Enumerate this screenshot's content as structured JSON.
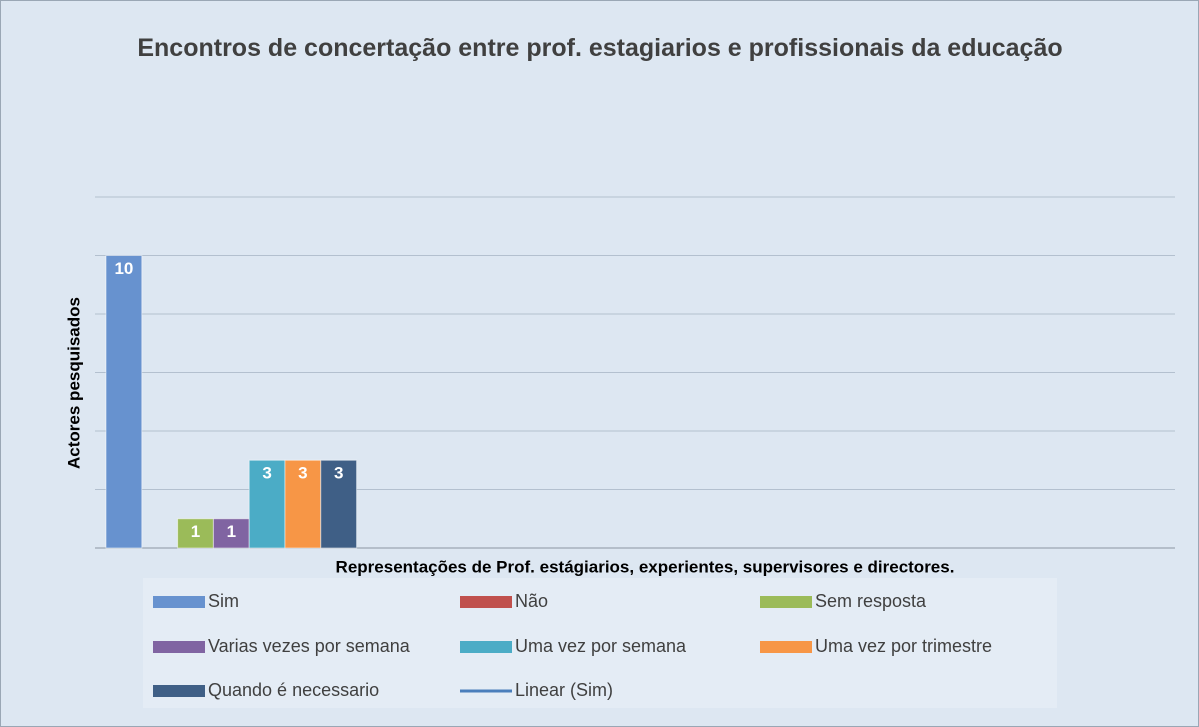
{
  "chart_data": {
    "type": "bar",
    "title": "Encontros de concertação entre prof. estagiarios e  profissionais da educação",
    "xlabel": "Representações de Prof. estágiarios, experientes, supervisores e  directores.",
    "ylabel": "Actores  pesquisados",
    "categories": [
      null
    ],
    "series": [
      {
        "name": "Sim",
        "color": "#6792cf",
        "values": [
          10
        ]
      },
      {
        "name": "Não",
        "color": "#c0504d",
        "values": [
          0
        ]
      },
      {
        "name": "Sem resposta",
        "color": "#9bbb59",
        "values": [
          1
        ]
      },
      {
        "name": "Varias vezes por semana",
        "color": "#8064a2",
        "values": [
          1
        ]
      },
      {
        "name": "Uma vez por semana",
        "color": "#4bacc6",
        "values": [
          3
        ]
      },
      {
        "name": "Uma vez por trimestre",
        "color": "#f79646",
        "values": [
          3
        ]
      },
      {
        "name": "Quando é necessario",
        "color": "#3f5f86",
        "values": [
          3
        ]
      }
    ],
    "trendline": {
      "name": "Linear (Sim)",
      "color": "#4a7ebb"
    },
    "ylim": [
      0,
      12
    ],
    "yticks": [
      0,
      2,
      4,
      6,
      8,
      10,
      12
    ],
    "grid": true,
    "data_labels": true,
    "legend": "bottom"
  }
}
